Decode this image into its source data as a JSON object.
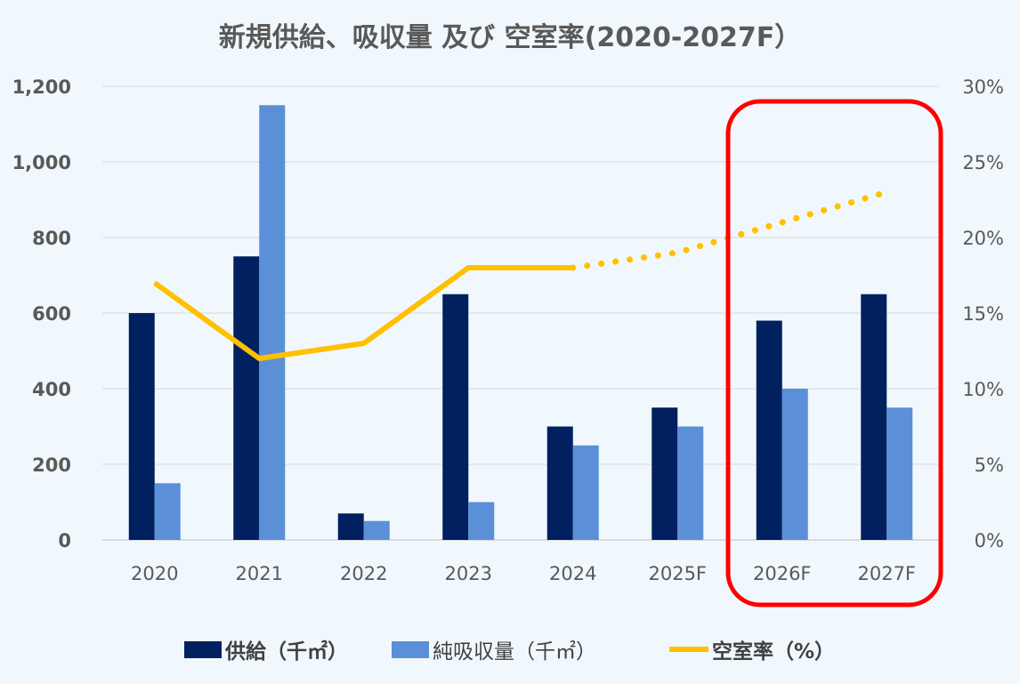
{
  "chart_data": {
    "type": "bar",
    "title": "新規供給、吸収量 及び 空室率(2020-2027F）",
    "categories": [
      "2020",
      "2021",
      "2022",
      "2023",
      "2024",
      "2025F",
      "2026F",
      "2027F"
    ],
    "series": [
      {
        "name": "供給（千㎡）",
        "kind": "bar",
        "axis": "left",
        "color": "#002060",
        "values": [
          600,
          750,
          70,
          650,
          300,
          350,
          580,
          650
        ]
      },
      {
        "name": "純吸収量（千㎡）",
        "kind": "bar",
        "axis": "left",
        "color": "#5b8fd8",
        "values": [
          150,
          1150,
          50,
          100,
          250,
          300,
          400,
          350
        ]
      },
      {
        "name": "空室率（%）",
        "kind": "line",
        "axis": "right",
        "color": "#ffc000",
        "values": [
          17,
          12,
          13,
          18,
          18,
          19,
          21,
          23
        ],
        "forecast_from_index": 4
      }
    ],
    "y_left": {
      "min": 0,
      "max": 1200,
      "ticks": [
        0,
        200,
        400,
        600,
        800,
        1000,
        1200
      ],
      "tick_labels": [
        "0",
        "200",
        "400",
        "600",
        "800",
        "1,000",
        "1,200"
      ]
    },
    "y_right": {
      "min": 0,
      "max": 30,
      "ticks": [
        0,
        5,
        10,
        15,
        20,
        25,
        30
      ],
      "tick_labels": [
        "0%",
        "5%",
        "10%",
        "15%",
        "20%",
        "25%",
        "30%"
      ]
    },
    "grid": true,
    "legend_position": "bottom",
    "highlight": {
      "categories": [
        "2026F",
        "2027F"
      ],
      "color": "#ff0000"
    }
  }
}
